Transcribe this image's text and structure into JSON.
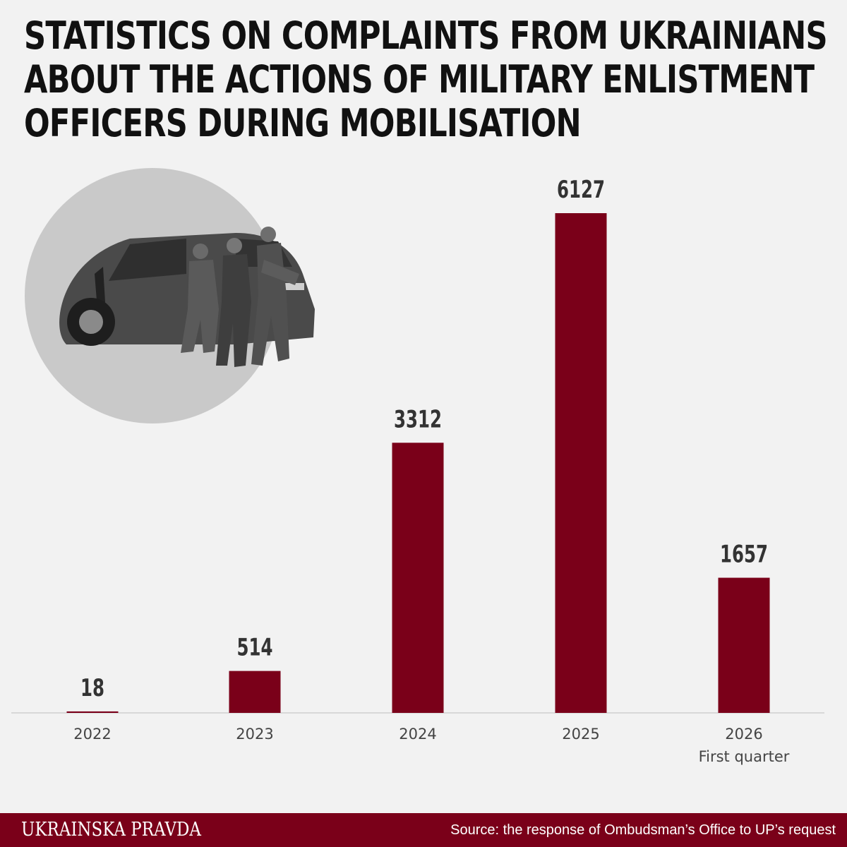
{
  "title": "Statistics on complaints from Ukrainians\nabout the actions of military enlistment\nofficers during mobilisation",
  "footer": {
    "brand": "UKRAINSKA PRAVDA",
    "source": "Source: the response of Ombudsman’s Office to UP’s request"
  },
  "colors": {
    "bar": "#7a0019",
    "footer": "#7a0019",
    "background": "#f2f2f2"
  },
  "chart_data": {
    "type": "bar",
    "categories": [
      "2022",
      "2023",
      "2024",
      "2025",
      "2026"
    ],
    "category_sublabels": [
      "",
      "",
      "",
      "",
      "First quarter"
    ],
    "values": [
      18,
      514,
      3312,
      6127,
      1657
    ],
    "data_labels": [
      "18",
      "514",
      "3312",
      "6127",
      "1657"
    ],
    "title": "Statistics on complaints from Ukrainians about the actions of military enlistment officers during mobilisation",
    "xlabel": "",
    "ylabel": "",
    "ylim": [
      0,
      6127
    ],
    "grid": false,
    "legend": "none"
  }
}
